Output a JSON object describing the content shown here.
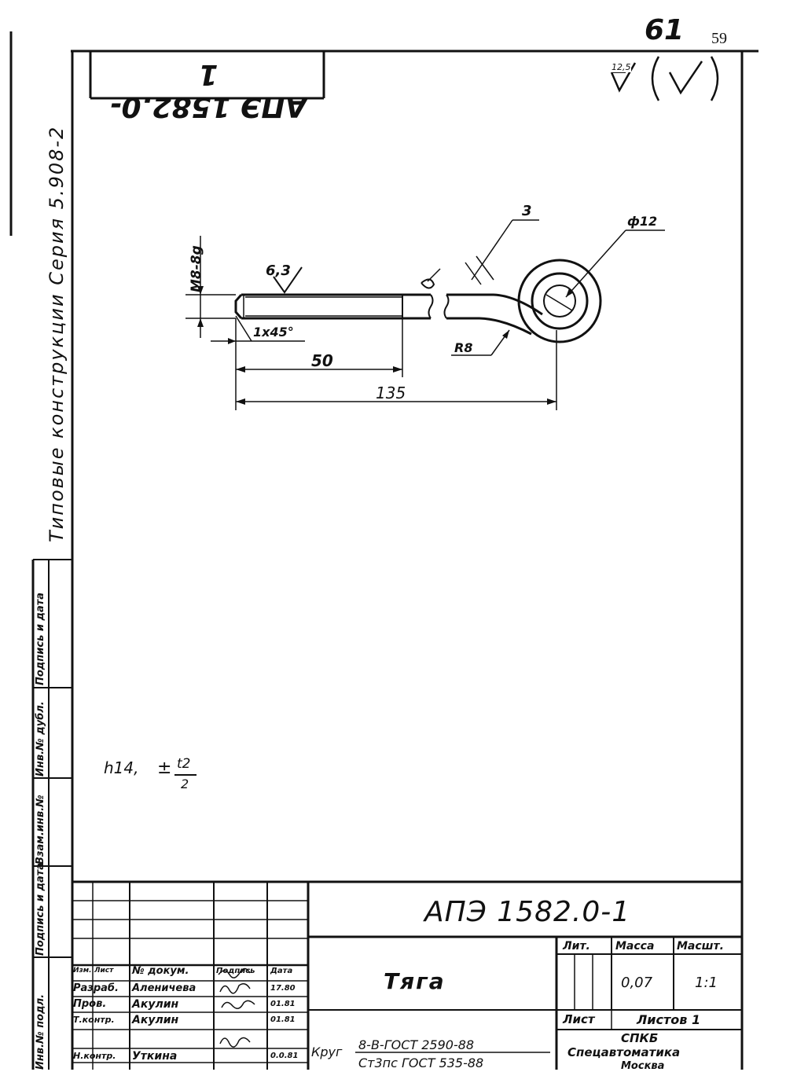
{
  "sheet_marks": {
    "handwritten_number": "61",
    "printed_number": "59",
    "mirrored_code": "АПЭ 1582.0-1",
    "roughness_general": "12,5"
  },
  "side_series": "Типовые конструкции   Серия 5.908-2",
  "left_stamp": [
    "Подпись и дата",
    "Инв.№ дубл.",
    "Взам.инв.№",
    "Подпись и дата",
    "Инв.№ подл."
  ],
  "drawing": {
    "thread_label": "М8-8g",
    "roughness_thread": "6,3",
    "chamfer_label": "1х45°",
    "dim_thread_len": "50",
    "dim_total_len": "135",
    "dim_bend": "3",
    "dim_diameter": "ф12",
    "dim_radius": "R8"
  },
  "note": {
    "prefix": "h14,",
    "pm": "±",
    "numerator": "t2",
    "denominator": "2"
  },
  "title_block": {
    "document_code": "АПЭ 1582.0-1",
    "part_name": "Тяга",
    "headers": {
      "izm": "Изм.",
      "list": "Лист",
      "doc_no": "№ докум.",
      "sign": "Подпись",
      "date": "Дата"
    },
    "rows": [
      {
        "role": "Разраб.",
        "name": "Аленичева",
        "date": "17.80"
      },
      {
        "role": "Пров.",
        "name": "Акулин",
        "date": "01.81"
      },
      {
        "role": "Т.контр.",
        "name": "Акулин",
        "date": "01.81"
      },
      {
        "role": "Н.контр.",
        "name": "Уткина",
        "date": "0.0.81"
      }
    ],
    "lit_label": "Лит.",
    "mass_label": "Масса",
    "scale_label": "Масшт.",
    "mass_value": "0,07",
    "scale_value": "1:1",
    "sheet_label": "Лист",
    "sheets_label": "Листов 1",
    "material_prefix": "Круг",
    "material_line1": "8-В-ГОСТ 2590-88",
    "material_line2": "Ст3пс ГОСТ 535-88",
    "org_line1": "СПКБ",
    "org_line2": "Спецавтоматика",
    "org_line3": "Москва"
  }
}
